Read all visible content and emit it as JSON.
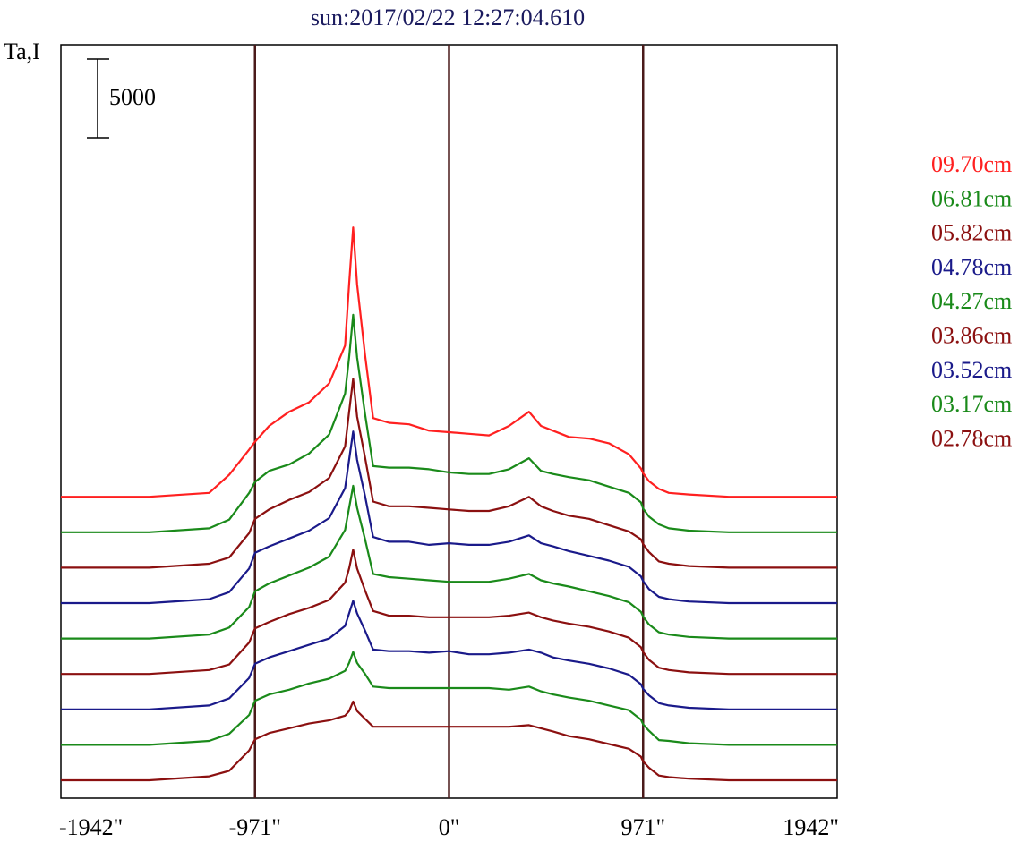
{
  "chart_data": {
    "type": "line",
    "title": "sun:2017/02/22 12:27:04.610",
    "ylabel": "Ta,I",
    "xlabel": "",
    "scale_bar_label": "5000",
    "scale_bar_value": 5000,
    "x_ticks": [
      {
        "value": -1942,
        "label": "-1942\""
      },
      {
        "value": -971,
        "label": "-971\""
      },
      {
        "value": 0,
        "label": "0\""
      },
      {
        "value": 971,
        "label": "971\""
      },
      {
        "value": 1942,
        "label": "1942\""
      }
    ],
    "xlim": [
      -1942,
      1942
    ],
    "vertical_lines": [
      -971,
      0,
      971
    ],
    "series_offset": 2250,
    "x": [
      -1942,
      -1500,
      -1200,
      -1100,
      -1000,
      -971,
      -900,
      -800,
      -700,
      -600,
      -520,
      -500,
      -480,
      -460,
      -420,
      -380,
      -300,
      -200,
      -100,
      0,
      100,
      200,
      300,
      400,
      460,
      520,
      600,
      700,
      800,
      900,
      960,
      971,
      1000,
      1050,
      1100,
      1200,
      1400,
      1600,
      1942
    ],
    "series": [
      {
        "name": "09.70cm",
        "color": "#ff2020",
        "values": [
          0,
          0,
          250,
          1400,
          3000,
          3500,
          4500,
          5400,
          6000,
          7200,
          9600,
          13500,
          17100,
          13500,
          9000,
          5000,
          4700,
          4600,
          4200,
          4100,
          4000,
          3900,
          4500,
          5400,
          4500,
          4200,
          3800,
          3700,
          3400,
          2700,
          1800,
          1500,
          1000,
          500,
          250,
          150,
          0,
          0,
          0
        ]
      },
      {
        "name": "06.81cm",
        "color": "#1a8a1a",
        "values": [
          0,
          0,
          250,
          800,
          2500,
          3200,
          3900,
          4300,
          5000,
          6200,
          8800,
          11100,
          13800,
          11100,
          7500,
          4200,
          4100,
          4100,
          4000,
          3800,
          3700,
          3700,
          4000,
          4700,
          3900,
          3700,
          3500,
          3300,
          2900,
          2500,
          1900,
          1500,
          1000,
          500,
          250,
          100,
          0,
          0,
          0
        ]
      },
      {
        "name": "05.82cm",
        "color": "#8b1010",
        "values": [
          0,
          0,
          250,
          650,
          2200,
          3100,
          3700,
          4300,
          4800,
          5700,
          7700,
          9900,
          12000,
          9600,
          7000,
          4200,
          3900,
          3900,
          3800,
          3700,
          3600,
          3600,
          3900,
          4500,
          3900,
          3600,
          3300,
          3100,
          2700,
          2300,
          1800,
          1500,
          1000,
          400,
          250,
          100,
          0,
          0,
          0
        ]
      },
      {
        "name": "04.78cm",
        "color": "#1a1a8a",
        "values": [
          0,
          0,
          250,
          700,
          2200,
          3200,
          3600,
          4100,
          4600,
          5400,
          7300,
          9100,
          10900,
          9100,
          6800,
          4200,
          3900,
          3900,
          3700,
          3800,
          3700,
          3700,
          3900,
          4300,
          3800,
          3600,
          3300,
          3000,
          2700,
          2300,
          1700,
          1400,
          900,
          400,
          250,
          100,
          0,
          0,
          0
        ]
      },
      {
        "name": "04.27cm",
        "color": "#1a8a1a",
        "values": [
          0,
          0,
          250,
          700,
          2000,
          3000,
          3500,
          4000,
          4500,
          5200,
          6900,
          8300,
          9700,
          8300,
          6300,
          4100,
          3900,
          3800,
          3700,
          3600,
          3600,
          3600,
          3800,
          4100,
          3700,
          3500,
          3300,
          3000,
          2700,
          2300,
          1700,
          1400,
          900,
          400,
          250,
          100,
          0,
          0,
          0
        ]
      },
      {
        "name": "03.86cm",
        "color": "#8b1010",
        "values": [
          0,
          0,
          250,
          600,
          2000,
          2900,
          3300,
          3800,
          4200,
          4700,
          5800,
          6700,
          7900,
          6700,
          5300,
          4000,
          3700,
          3700,
          3600,
          3600,
          3600,
          3600,
          3700,
          3900,
          3600,
          3400,
          3200,
          3000,
          2700,
          2300,
          1700,
          1400,
          900,
          400,
          250,
          100,
          0,
          0,
          0
        ]
      },
      {
        "name": "03.52cm",
        "color": "#1a1a8a",
        "values": [
          0,
          0,
          250,
          700,
          2000,
          2900,
          3300,
          3700,
          4100,
          4500,
          5300,
          6100,
          6900,
          6100,
          5000,
          3800,
          3700,
          3700,
          3600,
          3700,
          3500,
          3500,
          3600,
          3800,
          3600,
          3300,
          3100,
          2900,
          2600,
          2200,
          1600,
          1300,
          900,
          400,
          250,
          100,
          0,
          0,
          0
        ]
      },
      {
        "name": "03.17cm",
        "color": "#1a8a1a",
        "values": [
          0,
          0,
          250,
          700,
          1900,
          2800,
          3200,
          3500,
          3900,
          4200,
          4700,
          5200,
          5900,
          5200,
          4500,
          3700,
          3600,
          3600,
          3600,
          3600,
          3600,
          3600,
          3500,
          3700,
          3400,
          3200,
          3000,
          2800,
          2500,
          2200,
          1600,
          1300,
          900,
          300,
          250,
          100,
          0,
          0,
          0
        ]
      },
      {
        "name": "02.78cm",
        "color": "#8b1010",
        "values": [
          0,
          0,
          250,
          600,
          1900,
          2600,
          3000,
          3300,
          3600,
          3800,
          4100,
          4400,
          5000,
          4400,
          3900,
          3400,
          3400,
          3400,
          3400,
          3400,
          3400,
          3400,
          3400,
          3500,
          3300,
          3100,
          2800,
          2600,
          2300,
          2000,
          1500,
          1200,
          800,
          300,
          200,
          100,
          0,
          0,
          0
        ]
      }
    ],
    "legend_position": "right"
  }
}
